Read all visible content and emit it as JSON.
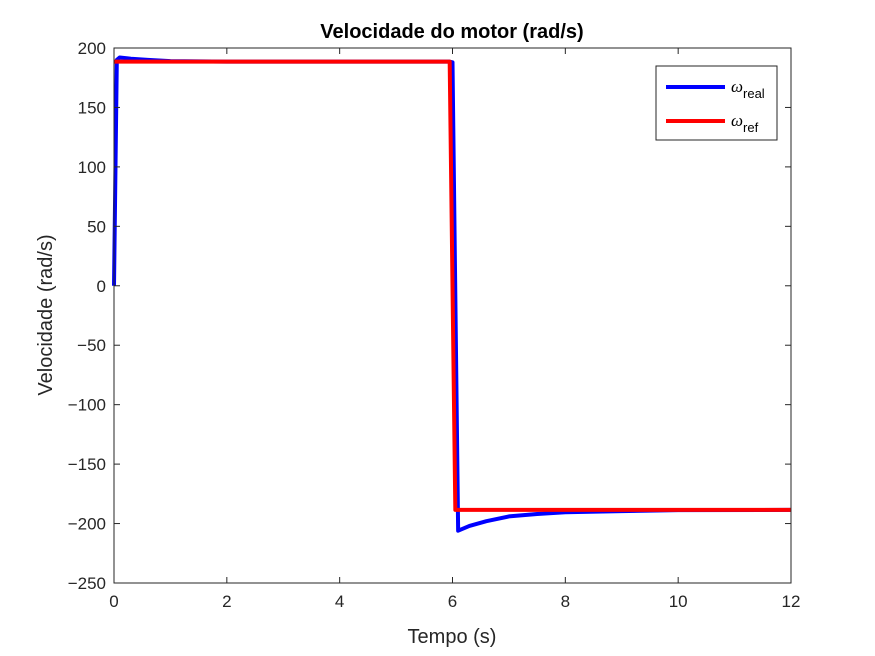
{
  "chart_data": {
    "type": "line",
    "title": "Velocidade do motor (rad/s)",
    "xlabel": "Tempo (s)",
    "ylabel": "Velocidade (rad/s)",
    "xlim": [
      0,
      12
    ],
    "ylim": [
      -250,
      200
    ],
    "xticks": [
      0,
      2,
      4,
      6,
      8,
      10,
      12
    ],
    "yticks": [
      -250,
      -200,
      -150,
      -100,
      -50,
      0,
      50,
      100,
      150,
      200
    ],
    "grid": false,
    "legend_position": "top-right",
    "series": [
      {
        "name": "ω_real",
        "label_main": "ω",
        "label_sub": "real",
        "color": "#0000FF",
        "x": [
          0,
          0.05,
          0.1,
          0.3,
          0.6,
          1.0,
          2.0,
          4.0,
          5.95,
          6.0,
          6.1,
          6.3,
          6.6,
          7.0,
          7.5,
          8.0,
          9.0,
          10.0,
          12.0
        ],
        "y": [
          0,
          190,
          192,
          191,
          190,
          189,
          188.5,
          188.5,
          188.5,
          188,
          -206,
          -202,
          -198,
          -194,
          -192,
          -190.5,
          -189.5,
          -188.7,
          -188.5
        ]
      },
      {
        "name": "ω_ref",
        "label_main": "ω",
        "label_sub": "ref",
        "color": "#FF0000",
        "x": [
          0,
          5.95,
          6.05,
          12.0
        ],
        "y": [
          188.5,
          188.5,
          -188.5,
          -188.5
        ]
      }
    ]
  }
}
